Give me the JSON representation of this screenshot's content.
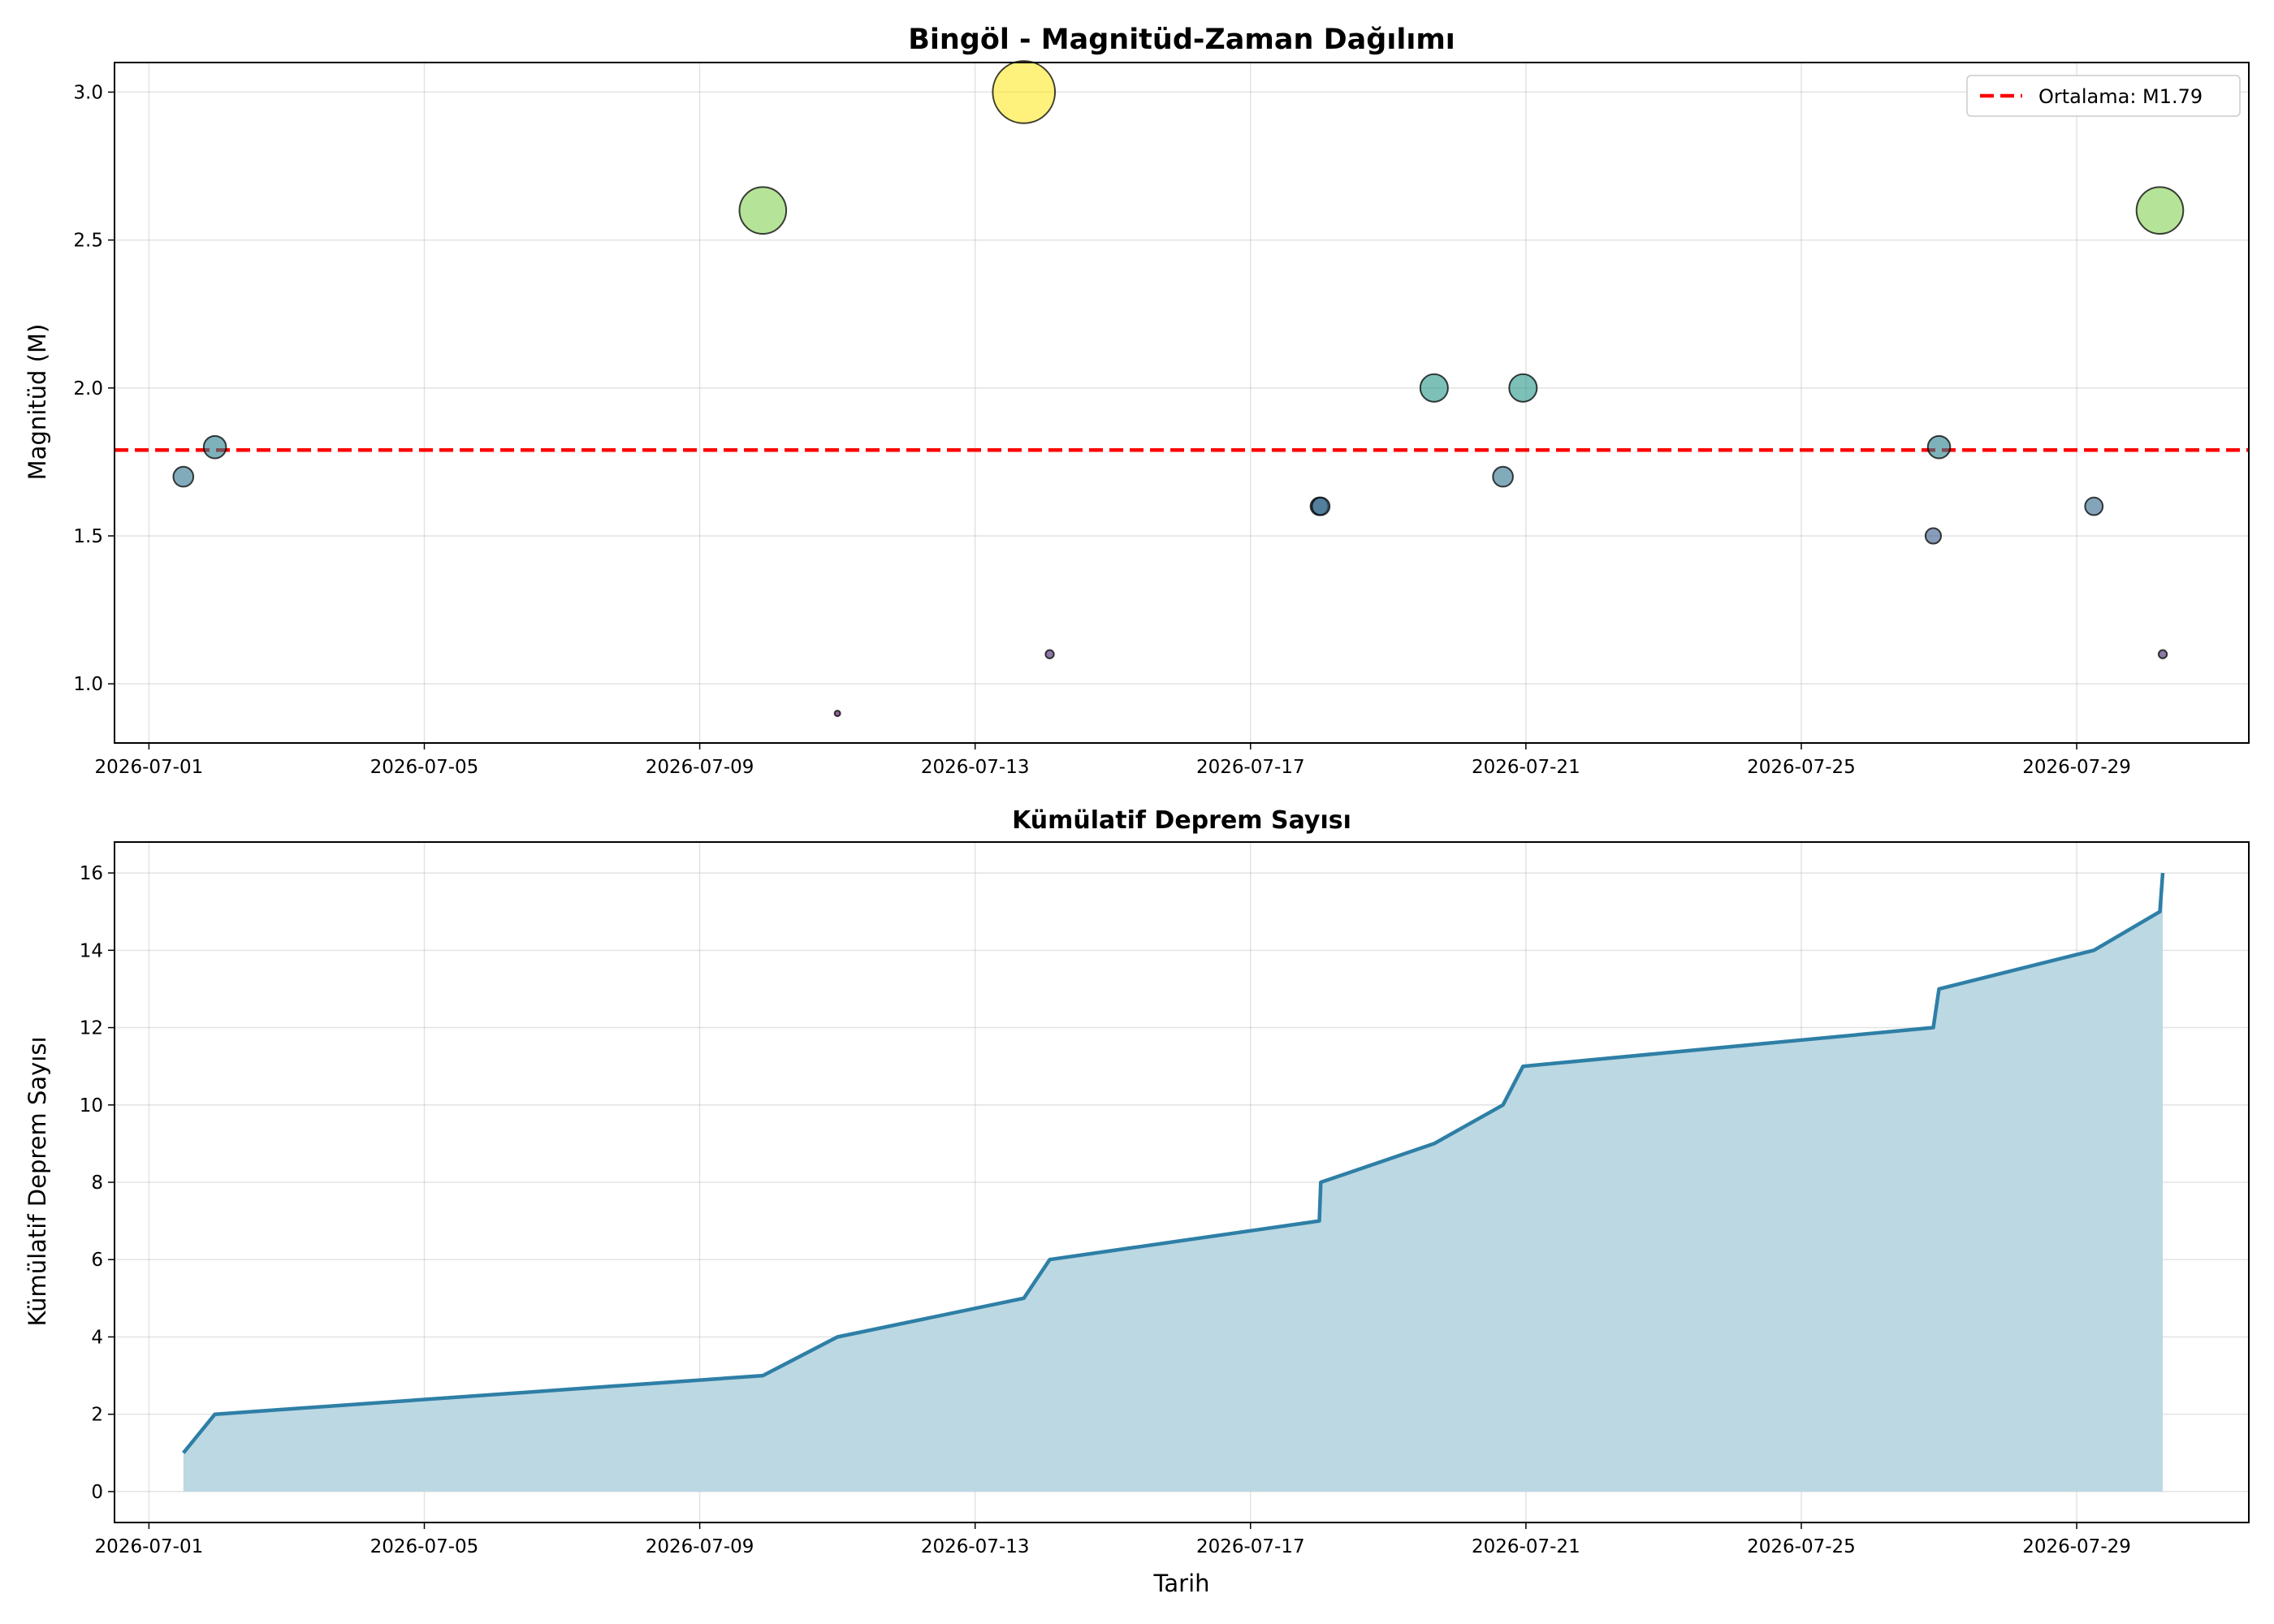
{
  "chart_data": [
    {
      "type": "scatter",
      "title": "Bingöl - Magnitüd-Zaman Dağılımı",
      "xlabel": "",
      "ylabel": "Magnitüd (M)",
      "x_type": "date",
      "xlim": [
        "2026-06-30 12:00",
        "2026-07-31 12:00"
      ],
      "ylim": [
        0.8,
        3.1
      ],
      "x_ticks": [
        "2026-07-01",
        "2026-07-05",
        "2026-07-09",
        "2026-07-13",
        "2026-07-17",
        "2026-07-21",
        "2026-07-25",
        "2026-07-29"
      ],
      "y_ticks": [
        "1.0",
        "1.5",
        "2.0",
        "2.5",
        "3.0"
      ],
      "grid": true,
      "colormap": "viridis",
      "points": [
        {
          "x": "2026-07-01 12:00",
          "y": 1.7
        },
        {
          "x": "2026-07-01 23:00",
          "y": 1.8
        },
        {
          "x": "2026-07-09 22:00",
          "y": 2.6
        },
        {
          "x": "2026-07-11 00:00",
          "y": 0.9
        },
        {
          "x": "2026-07-13 17:00",
          "y": 3.0
        },
        {
          "x": "2026-07-14 02:00",
          "y": 1.1
        },
        {
          "x": "2026-07-18 00:00",
          "y": 1.6
        },
        {
          "x": "2026-07-18 00:30",
          "y": 1.6
        },
        {
          "x": "2026-07-19 16:00",
          "y": 2.0
        },
        {
          "x": "2026-07-20 16:00",
          "y": 1.7
        },
        {
          "x": "2026-07-20 23:00",
          "y": 2.0
        },
        {
          "x": "2026-07-26 22:00",
          "y": 1.5
        },
        {
          "x": "2026-07-27 00:00",
          "y": 1.8
        },
        {
          "x": "2026-07-29 06:00",
          "y": 1.6
        },
        {
          "x": "2026-07-30 05:00",
          "y": 2.6
        },
        {
          "x": "2026-07-30 06:00",
          "y": 1.1
        }
      ],
      "mean_line": {
        "y": 1.79,
        "label": "Ortalama: M1.79",
        "color": "#ff0000"
      },
      "legend_position": "top-right"
    },
    {
      "type": "area",
      "title": "Kümülatif Deprem Sayısı",
      "xlabel": "Tarih",
      "ylabel": "Kümülatif Deprem Sayısı",
      "x_type": "date",
      "xlim": [
        "2026-06-30 12:00",
        "2026-07-31 12:00"
      ],
      "ylim": [
        -0.8,
        16.8
      ],
      "x_ticks": [
        "2026-07-01",
        "2026-07-05",
        "2026-07-09",
        "2026-07-13",
        "2026-07-17",
        "2026-07-21",
        "2026-07-25",
        "2026-07-29"
      ],
      "y_ticks": [
        "0",
        "2",
        "4",
        "6",
        "8",
        "10",
        "12",
        "14",
        "16"
      ],
      "grid": true,
      "line_color": "#2e7fa6",
      "fill_color": "#bcd8e3",
      "points": [
        {
          "x": "2026-07-01 12:00",
          "y": 1
        },
        {
          "x": "2026-07-01 23:00",
          "y": 2
        },
        {
          "x": "2026-07-09 22:00",
          "y": 3
        },
        {
          "x": "2026-07-11 00:00",
          "y": 4
        },
        {
          "x": "2026-07-13 17:00",
          "y": 5
        },
        {
          "x": "2026-07-14 02:00",
          "y": 6
        },
        {
          "x": "2026-07-18 00:00",
          "y": 7
        },
        {
          "x": "2026-07-18 00:30",
          "y": 8
        },
        {
          "x": "2026-07-19 16:00",
          "y": 9
        },
        {
          "x": "2026-07-20 16:00",
          "y": 10
        },
        {
          "x": "2026-07-20 23:00",
          "y": 11
        },
        {
          "x": "2026-07-26 22:00",
          "y": 12
        },
        {
          "x": "2026-07-27 00:00",
          "y": 13
        },
        {
          "x": "2026-07-29 06:00",
          "y": 14
        },
        {
          "x": "2026-07-30 05:00",
          "y": 15
        },
        {
          "x": "2026-07-30 06:00",
          "y": 16
        }
      ]
    }
  ]
}
